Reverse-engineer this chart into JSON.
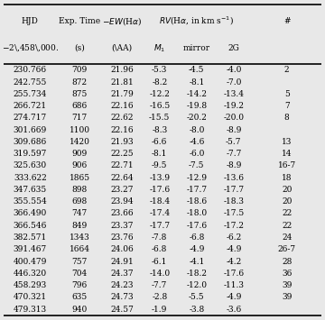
{
  "rows": [
    [
      "230.766",
      "709",
      "21.96",
      "-5.3",
      "-4.5",
      "-4.0",
      "2"
    ],
    [
      "242.755",
      "872",
      "21.81",
      "-8.2",
      "-8.1",
      "-7.0",
      ""
    ],
    [
      "255.734",
      "875",
      "21.79",
      "-12.2",
      "-14.2",
      "-13.4",
      "5"
    ],
    [
      "266.721",
      "686",
      "22.16",
      "-16.5",
      "-19.8",
      "-19.2",
      "7"
    ],
    [
      "274.717",
      "717",
      "22.62",
      "-15.5",
      "-20.2",
      "-20.0",
      "8"
    ],
    [
      "301.669",
      "1100",
      "22.16",
      "-8.3",
      "-8.0",
      "-8.9",
      ""
    ],
    [
      "309.686",
      "1420",
      "21.93",
      "-6.6",
      "-4.6",
      "-5.7",
      "13"
    ],
    [
      "319.597",
      "909",
      "22.25",
      "-8.1",
      "-6.0",
      "-7.7",
      "14"
    ],
    [
      "325.630",
      "906",
      "22.71",
      "-9.5",
      "-7.5",
      "-8.9",
      "16-7"
    ],
    [
      "333.622",
      "1865",
      "22.64",
      "-13.9",
      "-12.9",
      "-13.6",
      "18"
    ],
    [
      "347.635",
      "898",
      "23.27",
      "-17.6",
      "-17.7",
      "-17.7",
      "20"
    ],
    [
      "355.554",
      "698",
      "23.94",
      "-18.4",
      "-18.6",
      "-18.3",
      "20"
    ],
    [
      "366.490",
      "747",
      "23.66",
      "-17.4",
      "-18.0",
      "-17.5",
      "22"
    ],
    [
      "366.546",
      "849",
      "23.37",
      "-17.7",
      "-17.6",
      "-17.2",
      "22"
    ],
    [
      "382.571",
      "1343",
      "23.76",
      "-7.8",
      "-6.8",
      "-6.2",
      "24"
    ],
    [
      "391.467",
      "1664",
      "24.06",
      "-6.8",
      "-4.9",
      "-4.9",
      "26-7"
    ],
    [
      "400.479",
      "757",
      "24.91",
      "-6.1",
      "-4.1",
      "-4.2",
      "28"
    ],
    [
      "446.320",
      "704",
      "24.37",
      "-14.0",
      "-18.2",
      "-17.6",
      "36"
    ],
    [
      "458.293",
      "796",
      "24.23",
      "-7.7",
      "-12.0",
      "-11.3",
      "39"
    ],
    [
      "470.321",
      "635",
      "24.73",
      "-2.8",
      "-5.5",
      "-4.9",
      "39"
    ],
    [
      "479.313",
      "940",
      "24.57",
      "-1.9",
      "-3.8",
      "-3.6",
      ""
    ]
  ],
  "bg_color": "#e8e8e8",
  "font_size": 6.5,
  "header_font_size": 6.5
}
